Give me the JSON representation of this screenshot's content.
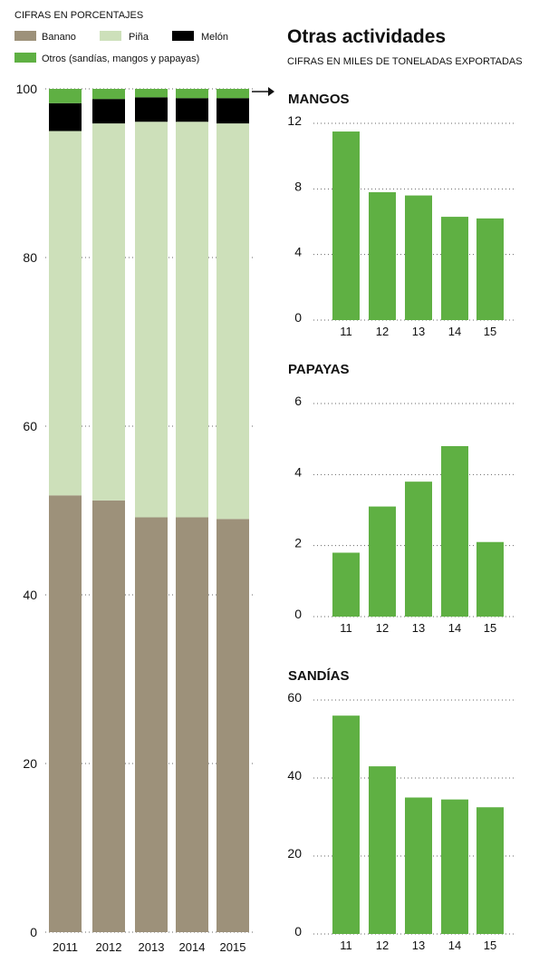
{
  "left_panel": {
    "subtitle": "CIFRAS EN PORCENTAJES",
    "legend": [
      {
        "label": "Banano",
        "color": "#9d917a"
      },
      {
        "label": "Piña",
        "color": "#cde0ba"
      },
      {
        "label": "Melón",
        "color": "#000000"
      },
      {
        "label": "Otros (sandías, mangos y papayas)",
        "color": "#5fb043"
      }
    ]
  },
  "right_panel": {
    "title": "Otras actividades",
    "subtitle": "CIFRAS EN MILES DE TONELADAS EXPORTADAS"
  },
  "chart_data": [
    {
      "type": "bar",
      "stacked": true,
      "title": "",
      "categories": [
        "2011",
        "2012",
        "2013",
        "2014",
        "2015"
      ],
      "series": [
        {
          "name": "Banano",
          "color": "#9d917a",
          "values": [
            51.8,
            51.2,
            49.2,
            49.2,
            49.0
          ]
        },
        {
          "name": "Piña",
          "color": "#cde0ba",
          "values": [
            43.2,
            44.7,
            46.9,
            46.9,
            46.9
          ]
        },
        {
          "name": "Melón",
          "color": "#000000",
          "values": [
            3.3,
            2.9,
            2.9,
            2.8,
            3.0
          ]
        },
        {
          "name": "Otros (sandías, mangos y papayas)",
          "color": "#5fb043",
          "values": [
            1.7,
            1.2,
            1.0,
            1.1,
            1.1
          ]
        }
      ],
      "ylim": [
        0,
        100
      ],
      "yticks": [
        "0",
        "20",
        "40",
        "60",
        "80",
        "100"
      ],
      "grid": "dotted horizontal"
    },
    {
      "type": "bar",
      "title": "MANGOS",
      "categories": [
        "11",
        "12",
        "13",
        "14",
        "15"
      ],
      "values": [
        11.5,
        7.8,
        7.6,
        6.3,
        6.2
      ],
      "ylim": [
        0,
        12
      ],
      "yticks": [
        "0",
        "4",
        "8",
        "12"
      ],
      "color": "#5fb043"
    },
    {
      "type": "bar",
      "title": "PAPAYAS",
      "categories": [
        "11",
        "12",
        "13",
        "14",
        "15"
      ],
      "values": [
        1.8,
        3.1,
        3.8,
        4.8,
        2.1
      ],
      "ylim": [
        0,
        6
      ],
      "yticks": [
        "0",
        "2",
        "4",
        "6"
      ],
      "color": "#5fb043"
    },
    {
      "type": "bar",
      "title": "SANDÍAS",
      "categories": [
        "11",
        "12",
        "13",
        "14",
        "15"
      ],
      "values": [
        56,
        43,
        35,
        34.5,
        32.5
      ],
      "ylim": [
        0,
        60
      ],
      "yticks": [
        "0",
        "20",
        "40",
        "60"
      ],
      "color": "#5fb043"
    }
  ]
}
